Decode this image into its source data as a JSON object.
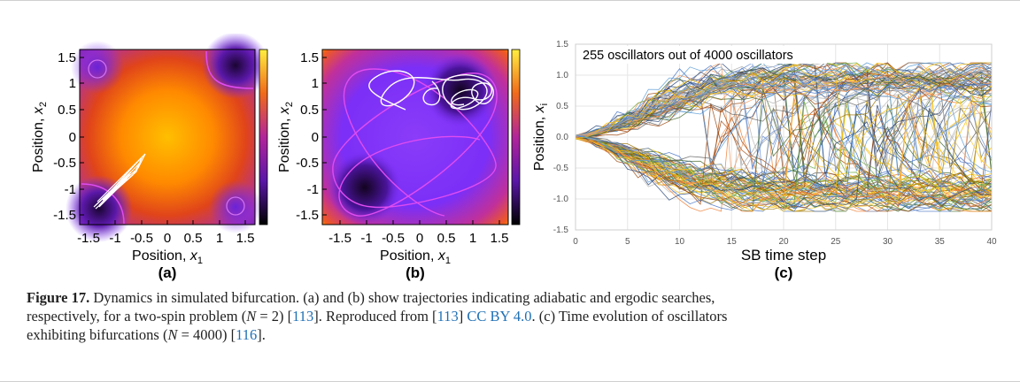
{
  "panel_a": {
    "panel_label": "(a)",
    "xlabel": "Position, ",
    "xlabel_var": "x",
    "xlabel_sub": "1",
    "ylabel": "Position, ",
    "ylabel_var": "x",
    "ylabel_sub": "2",
    "xticks": [
      "-1.5",
      "-1",
      "-0.5",
      "0",
      "0.5",
      "1",
      "1.5"
    ],
    "yticks": [
      "1.5",
      "1",
      "0.5",
      "0",
      "-0.5",
      "-1",
      "-1.5"
    ]
  },
  "panel_b": {
    "panel_label": "(b)",
    "xlabel": "Position, ",
    "xlabel_var": "x",
    "xlabel_sub": "1",
    "ylabel": "Position, ",
    "ylabel_var": "x",
    "ylabel_sub": "2",
    "xticks": [
      "-1.5",
      "-1",
      "-0.5",
      "0",
      "0.5",
      "1",
      "1.5"
    ],
    "yticks": [
      "1.5",
      "1",
      "0.5",
      "0",
      "-0.5",
      "-1",
      "-1.5"
    ]
  },
  "panel_c": {
    "panel_label": "(c)",
    "annotation": "255 oscillators out of 4000 oscillators",
    "xlabel": "SB time step",
    "ylabel": "Position, ",
    "ylabel_var": "x",
    "ylabel_sub": "i",
    "xticks": [
      "0",
      "5",
      "10",
      "15",
      "20",
      "25",
      "30",
      "35",
      "40"
    ],
    "yticks": [
      "1.5",
      "1.0",
      "0.5",
      "0.0",
      "-0.5",
      "-1.0",
      "-1.5"
    ]
  },
  "colors": {
    "heat_low": "#1a0533",
    "heat_mid": "#7b2ff7",
    "heat_high": "#ffcc00",
    "trajectory": "#ffffff",
    "contour": "#e04cf0"
  },
  "chart_data": [
    {
      "type": "heatmap",
      "panel": "(a)",
      "xlim": [
        -1.7,
        1.7
      ],
      "ylim": [
        -1.7,
        1.7
      ],
      "xlabel": "Position, x1",
      "ylabel": "Position, x2",
      "colorbar": true,
      "description_of_marks": "potential landscape with trajectory ending near (-1.25, -1.25)"
    },
    {
      "type": "heatmap",
      "panel": "(b)",
      "xlim": [
        -1.7,
        1.7
      ],
      "ylim": [
        -1.7,
        1.7
      ],
      "xlabel": "Position, x1",
      "ylabel": "Position, x2",
      "colorbar": true
    },
    {
      "type": "line",
      "panel": "(c)",
      "xlim": [
        0,
        40
      ],
      "ylim": [
        -1.5,
        1.5
      ],
      "xlabel": "SB time step",
      "ylabel": "Position, xi",
      "annotation": "255 oscillators out of 4000 oscillators",
      "n_series_shown": 255,
      "x": [
        0,
        1,
        2,
        3,
        4,
        5,
        6,
        7,
        8,
        9,
        10,
        11,
        12,
        13,
        14,
        15,
        16,
        17,
        18,
        19,
        20,
        21,
        22,
        23,
        24,
        25,
        26,
        27,
        28,
        29,
        30,
        31,
        32,
        33,
        34,
        35,
        36,
        37,
        38,
        39,
        40
      ]
    }
  ],
  "caption": {
    "fig_label": "Figure 17.",
    "line1": " Dynamics in simulated bifurcation. (a) and (b) show trajectories indicating adiabatic and ergodic searches,",
    "line2a": "respectively, for a two-spin problem (",
    "line2b": "N",
    "line2c": " = 2) [",
    "line2d": "113",
    "line2e": "]. Reproduced from [",
    "line2f": "113",
    "line2g": "] ",
    "line2h": "CC BY 4.0",
    "line2i": ". (c) Time evolution of oscillators",
    "line3a": "exhibiting bifurcations (",
    "line3b": "N",
    "line3c": " = 4000) [",
    "line3d": "116",
    "line3e": "]."
  }
}
